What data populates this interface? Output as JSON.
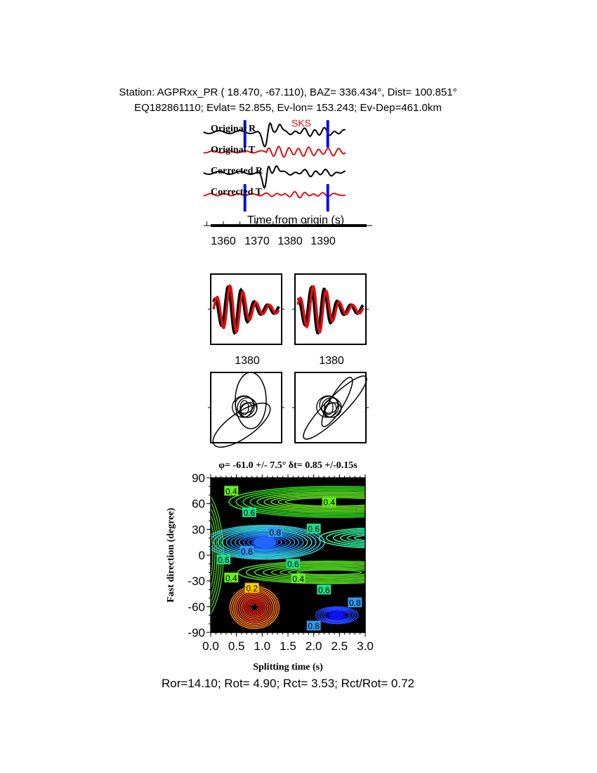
{
  "header": {
    "line1": "Station: AGPRxx_PR (  18.470,  -67.110), BAZ=  336.434°, Dist=  100.851°",
    "line2": "EQ182861110; Evlat=  52.855, Ev-lon= 153.243; Ev-Dep=461.0km"
  },
  "colors": {
    "radial": "#000000",
    "transverse": "#e01010",
    "window": "#0010e0",
    "background": "#000000"
  },
  "chart_data": [
    {
      "type": "line",
      "phase_label": "SKS",
      "traces": [
        "Original R",
        "Original T",
        "Corrected R",
        "Corrected T"
      ],
      "xlabel": "Time from origin (s)",
      "xticks": [
        "1360",
        "1370",
        "1380",
        "1390"
      ],
      "xlim": [
        1354,
        1397
      ],
      "window": [
        1366.5,
        1391.5
      ]
    },
    {
      "type": "line",
      "panels": [
        {
          "xtick": "1380"
        },
        {
          "xtick": "1380"
        }
      ]
    },
    {
      "type": "line",
      "panels": [
        "particle-motion-original",
        "particle-motion-corrected"
      ]
    },
    {
      "type": "heatmap",
      "title": "φ= -61.0 +/- 7.5° δt= 0.85 +/-0.15s",
      "xlabel": "Splitting time (s)",
      "ylabel": "Fast direction (degree)",
      "xlim": [
        0,
        3
      ],
      "ylim": [
        -90,
        90
      ],
      "xticks": [
        "0.0",
        "0.5",
        "1.0",
        "1.5",
        "2.0",
        "2.5",
        "3.0"
      ],
      "yticks": [
        "90",
        "60",
        "30",
        "0",
        "-30",
        "-60",
        "-90"
      ],
      "best_fit": {
        "dt": 0.85,
        "phi": -61.0
      },
      "contour_labels": [
        {
          "text": "0.4",
          "x": 0.4,
          "y": 75
        },
        {
          "text": "0.4",
          "x": 2.3,
          "y": 62
        },
        {
          "text": "0.6",
          "x": 0.75,
          "y": 50
        },
        {
          "text": "0.8",
          "x": 1.25,
          "y": 27
        },
        {
          "text": "0.6",
          "x": 2.0,
          "y": 31
        },
        {
          "text": "0.8",
          "x": 0.7,
          "y": 5
        },
        {
          "text": "0.6",
          "x": 0.25,
          "y": -5
        },
        {
          "text": "0.6",
          "x": 1.6,
          "y": -10
        },
        {
          "text": "0.4",
          "x": 0.4,
          "y": -26
        },
        {
          "text": "0.4",
          "x": 1.7,
          "y": -27
        },
        {
          "text": "0.2",
          "x": 0.8,
          "y": -38
        },
        {
          "text": "0.6",
          "x": 2.2,
          "y": -40
        },
        {
          "text": "0.8",
          "x": 2.8,
          "y": -55
        },
        {
          "text": "0.8",
          "x": 2.0,
          "y": -82
        }
      ]
    }
  ],
  "footer": "Ror=14.10; Rot= 4.90; Rct= 3.53; Rct/Rot= 0.72"
}
